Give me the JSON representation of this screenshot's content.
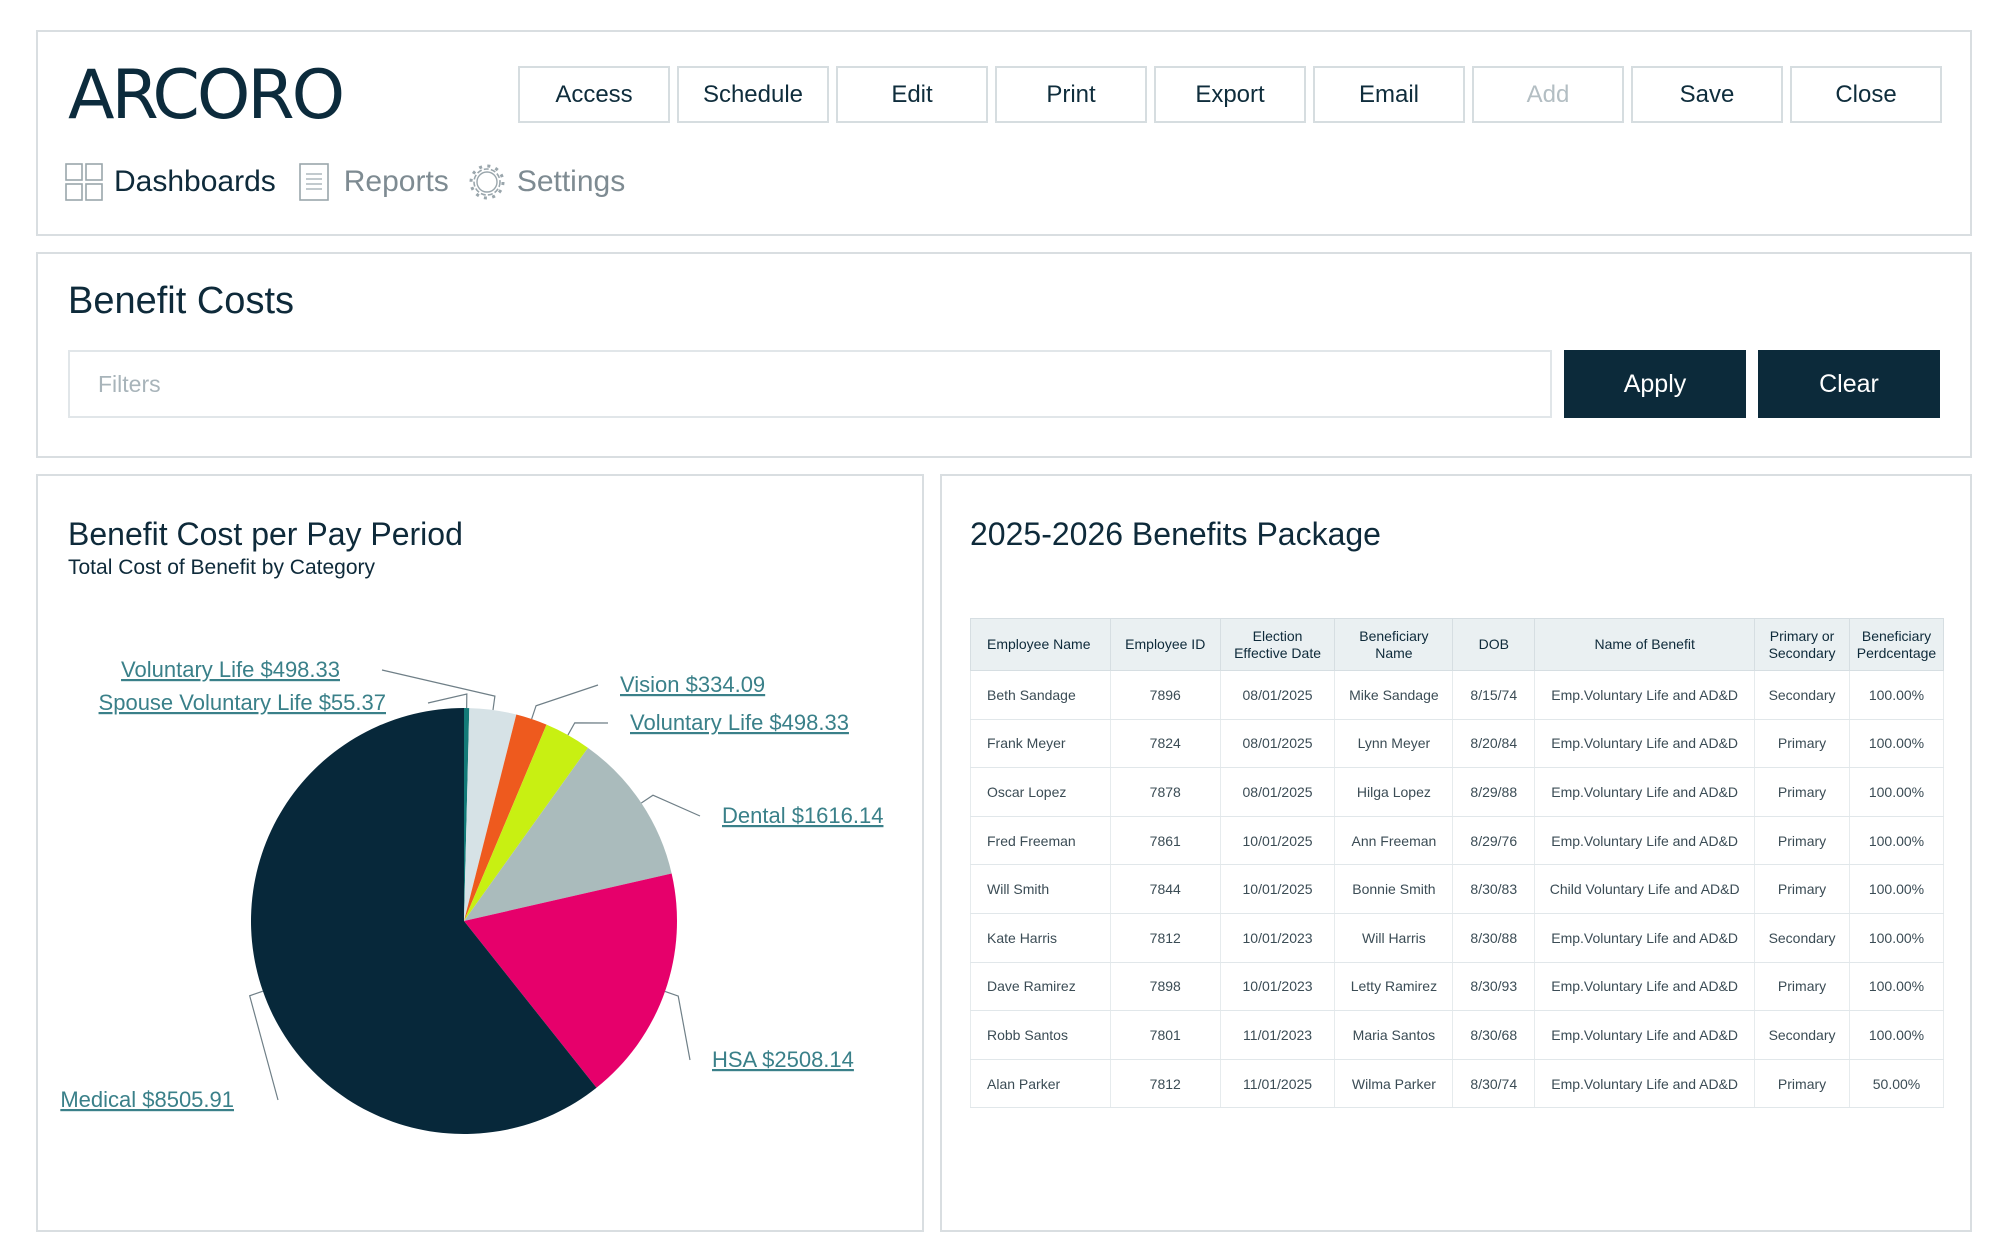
{
  "app": {
    "logo_text": "ARCORO"
  },
  "toolbar": {
    "buttons": [
      "Access",
      "Schedule",
      "Edit",
      "Print",
      "Export",
      "Email",
      "Add",
      "Save",
      "Close"
    ],
    "disabled": [
      "Add"
    ]
  },
  "nav": {
    "items": [
      {
        "label": "Dashboards",
        "icon": "grid-icon",
        "active": true
      },
      {
        "label": "Reports",
        "icon": "document-icon",
        "active": false
      },
      {
        "label": "Settings",
        "icon": "gear-icon",
        "active": false
      }
    ]
  },
  "page": {
    "title": "Benefit Costs",
    "filters_placeholder": "Filters",
    "apply_label": "Apply",
    "clear_label": "Clear"
  },
  "chart": {
    "title": "Benefit Cost per Pay Period",
    "subtitle": "Total Cost of Benefit by Category"
  },
  "chart_data": {
    "type": "pie",
    "title": "Benefit Cost per Pay Period",
    "subtitle": "Total Cost of Benefit by Category",
    "slices": [
      {
        "label": "Spouse Voluntary Life $55.37",
        "value": 55.37,
        "color": "#137a78"
      },
      {
        "label": "Voluntary Life $498.33",
        "value": 498.33,
        "color": "#d6e2e6"
      },
      {
        "label": "Vision $334.09",
        "value": 334.09,
        "color": "#ee5a1e"
      },
      {
        "label": "Voluntary Life $498.33",
        "value": 498.33,
        "color": "#c8f012"
      },
      {
        "label": "Dental $1616.14",
        "value": 1616.14,
        "color": "#aabbbc"
      },
      {
        "label": "HSA $2508.14",
        "value": 2508.14,
        "color": "#e6006b"
      },
      {
        "label": "Medical $8505.91",
        "value": 8505.91,
        "color": "#07283a"
      }
    ]
  },
  "table": {
    "title": "2025-2026 Benefits Package",
    "columns": [
      "Employee Name",
      "Employee ID",
      "Election Effective Date",
      "Beneficiary Name",
      "DOB",
      "Name of Benefit",
      "Primary or Secondary",
      "Beneficiary Perdcentage"
    ],
    "rows": [
      [
        "Beth Sandage",
        "7896",
        "08/01/2025",
        "Mike Sandage",
        "8/15/74",
        "Emp.Voluntary Life and AD&D",
        "Secondary",
        "100.00%"
      ],
      [
        "Frank Meyer",
        "7824",
        "08/01/2025",
        "Lynn Meyer",
        "8/20/84",
        "Emp.Voluntary Life and AD&D",
        "Primary",
        "100.00%"
      ],
      [
        "Oscar Lopez",
        "7878",
        "08/01/2025",
        "Hilga Lopez",
        "8/29/88",
        "Emp.Voluntary Life and AD&D",
        "Primary",
        "100.00%"
      ],
      [
        "Fred Freeman",
        "7861",
        "10/01/2025",
        "Ann Freeman",
        "8/29/76",
        "Emp.Voluntary Life and AD&D",
        "Primary",
        "100.00%"
      ],
      [
        "Will Smith",
        "7844",
        "10/01/2025",
        "Bonnie Smith",
        "8/30/83",
        "Child Voluntary Life and AD&D",
        "Primary",
        "100.00%"
      ],
      [
        "Kate Harris",
        "7812",
        "10/01/2023",
        "Will Harris",
        "8/30/88",
        "Emp.Voluntary Life and AD&D",
        "Secondary",
        "100.00%"
      ],
      [
        "Dave Ramirez",
        "7898",
        "10/01/2023",
        "Letty Ramirez",
        "8/30/93",
        "Emp.Voluntary Life and AD&D",
        "Primary",
        "100.00%"
      ],
      [
        "Robb Santos",
        "7801",
        "11/01/2023",
        "Maria Santos",
        "8/30/68",
        "Emp.Voluntary Life and AD&D",
        "Secondary",
        "100.00%"
      ],
      [
        "Alan Parker",
        "7812",
        "11/01/2025",
        "Wilma Parker",
        "8/30/74",
        "Emp.Voluntary Life and AD&D",
        "Primary",
        "50.00%"
      ]
    ]
  }
}
